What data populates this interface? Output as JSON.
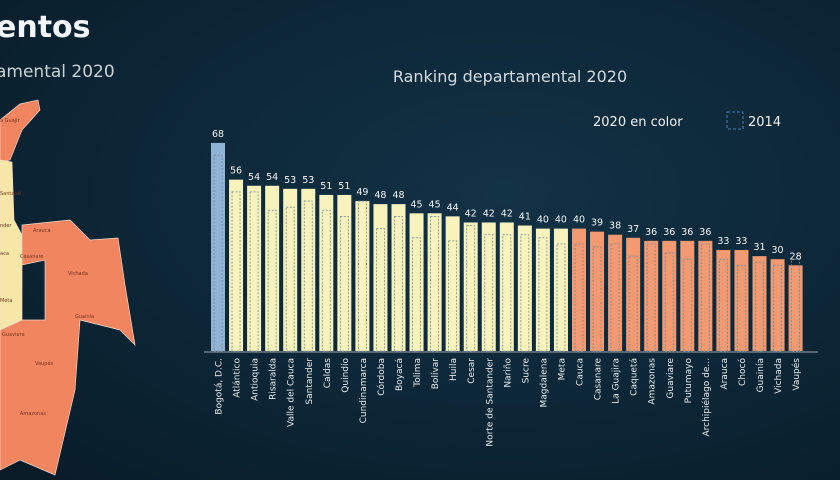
{
  "header": {
    "title": "entos",
    "subtitle": "amental 2020"
  },
  "map": {
    "labels": [
      "a Guajir",
      "Santand",
      "nder",
      "Arauca",
      "aca",
      "Casanare",
      "Vichada",
      "Meta",
      "Guainía",
      "Guaviare",
      "Vaupés",
      "Amazonas"
    ]
  },
  "chart_data": {
    "type": "bar",
    "title": "Ranking departamental 2020",
    "legend": {
      "series_2020": "2020 en color",
      "series_2014": "2014",
      "placement": "top-right"
    },
    "categories": [
      "Bogotá, D.C.",
      "Atlántico",
      "Antioquia",
      "Risaralda",
      "Valle del Cauca",
      "Santander",
      "Caldas",
      "Quindío",
      "Cundinamarca",
      "Córdoba",
      "Boyacá",
      "Tolima",
      "Bolívar",
      "Huila",
      "Cesar",
      "Norte de Santander",
      "Nariño",
      "Sucre",
      "Magdalena",
      "Meta",
      "Cauca",
      "Casanare",
      "La Guajira",
      "Caquetá",
      "Amazonas",
      "Guaviare",
      "Putumayo",
      "Archipiélago de...",
      "Arauca",
      "Chocó",
      "Guainía",
      "Vichada",
      "Vaupés"
    ],
    "series": [
      {
        "name": "2020 en color",
        "values": [
          68,
          56,
          54,
          54,
          53,
          53,
          51,
          51,
          49,
          48,
          48,
          45,
          45,
          44,
          42,
          42,
          42,
          41,
          40,
          40,
          40,
          39,
          38,
          37,
          36,
          36,
          36,
          36,
          33,
          33,
          31,
          30,
          28
        ]
      },
      {
        "name": "2014",
        "values": [
          64,
          52,
          52,
          46,
          47,
          49,
          46,
          44,
          49,
          40,
          44,
          37,
          44,
          36,
          41,
          38,
          38,
          38,
          37,
          35,
          35,
          34,
          35,
          31,
          35,
          32,
          30,
          35,
          30,
          28,
          29,
          28,
          30
        ]
      }
    ],
    "groups": [
      "blue",
      "yellow",
      "yellow",
      "yellow",
      "yellow",
      "yellow",
      "yellow",
      "yellow",
      "yellow",
      "yellow",
      "yellow",
      "yellow",
      "yellow",
      "yellow",
      "yellow",
      "yellow",
      "yellow",
      "yellow",
      "yellow",
      "yellow",
      "orange",
      "orange",
      "orange",
      "orange",
      "orange",
      "orange",
      "orange",
      "orange",
      "orange",
      "orange",
      "orange",
      "orange",
      "orange"
    ],
    "colors": {
      "blue": "#8fb3d4",
      "yellow": "#f8f2bd",
      "orange": "#f39a72",
      "dashed": "#7d8a93",
      "legend_dashed": "#4a7fb5"
    },
    "ylim": [
      0,
      70
    ],
    "grid": false
  }
}
